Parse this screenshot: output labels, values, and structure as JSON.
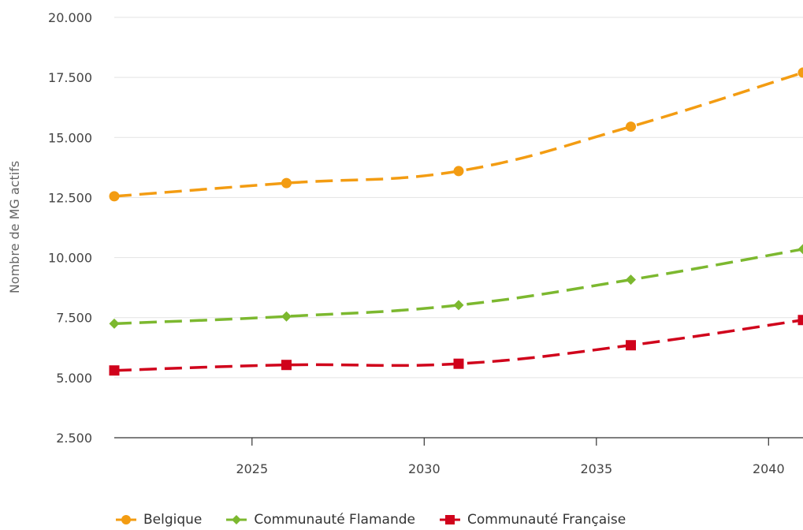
{
  "chart_data": {
    "type": "line",
    "title": "",
    "xlabel": "",
    "ylabel": "Nombre de MG actifs",
    "x": [
      2021,
      2026,
      2031,
      2036,
      2041
    ],
    "x_ticks": [
      2025,
      2030,
      2035,
      2040
    ],
    "x_tick_labels": [
      "2025",
      "2030",
      "2035",
      "2040"
    ],
    "xlim": [
      2021,
      2041
    ],
    "ylim": [
      2500,
      20000
    ],
    "y_ticks": [
      2500,
      5000,
      7500,
      10000,
      12500,
      15000,
      17500,
      20000
    ],
    "y_tick_labels": [
      "2.500",
      "5.000",
      "7.500",
      "10.000",
      "12.500",
      "15.000",
      "17.500",
      "20.000"
    ],
    "grid": "horizontal",
    "legend_position": "bottom-left",
    "series": [
      {
        "name": "Belgique",
        "color": "#f39c12",
        "marker": "circle",
        "values": [
          12550,
          13100,
          13600,
          15450,
          17700
        ]
      },
      {
        "name": "Communauté Flamande",
        "color": "#7cb82f",
        "marker": "diamond",
        "values": [
          7250,
          7550,
          8020,
          9080,
          10350
        ]
      },
      {
        "name": "Communauté Française",
        "color": "#d0021b",
        "marker": "square",
        "values": [
          5300,
          5530,
          5580,
          6350,
          7400
        ]
      }
    ]
  }
}
